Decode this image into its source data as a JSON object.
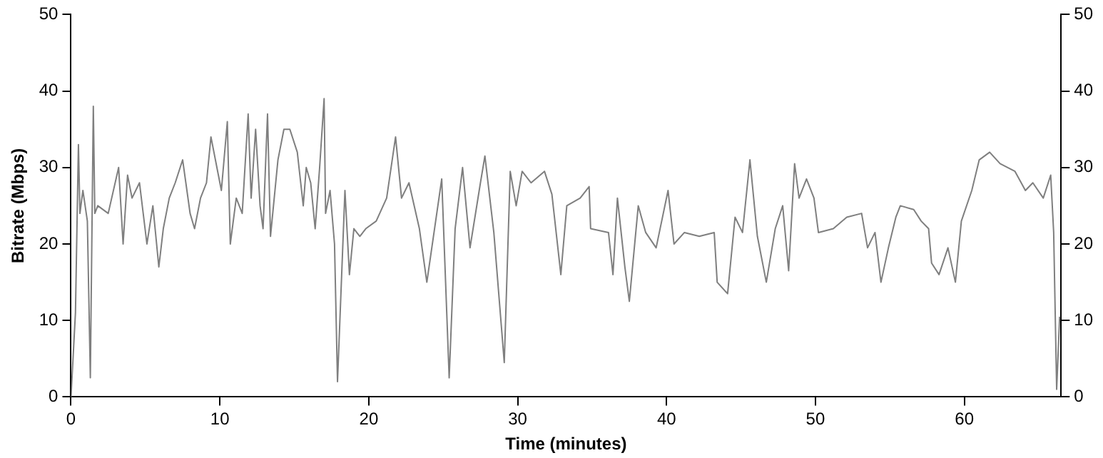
{
  "chart_data": {
    "type": "line",
    "xlabel": "Time (minutes)",
    "ylabel": "Bitrate (Mbps)",
    "xlim": [
      0,
      66.5
    ],
    "xticks": [
      0,
      10,
      20,
      30,
      40,
      50,
      60
    ],
    "ylim": [
      0,
      50
    ],
    "yticks": [
      0,
      10,
      20,
      30,
      40,
      50
    ],
    "y2lim": [
      0,
      50
    ],
    "y2ticks": [
      0,
      10,
      20,
      30,
      40,
      50
    ],
    "grid": false,
    "legend": false,
    "marker": "none",
    "line_style": "solid",
    "series": [
      {
        "color": "#7f7f7f",
        "x": [
          0,
          0.3,
          0.5,
          0.6,
          0.8,
          1.1,
          1.3,
          1.5,
          1.6,
          1.8,
          2.5,
          3.2,
          3.5,
          3.8,
          4.1,
          4.6,
          5.1,
          5.5,
          5.9,
          6.2,
          6.6,
          7.0,
          7.5,
          8.0,
          8.3,
          8.7,
          9.1,
          9.4,
          9.9,
          10.1,
          10.5,
          10.7,
          11.1,
          11.5,
          11.9,
          12.1,
          12.4,
          12.7,
          12.9,
          13.2,
          13.4,
          13.6,
          13.9,
          14.3,
          14.7,
          15.2,
          15.6,
          15.8,
          16.1,
          16.4,
          16.7,
          17.0,
          17.1,
          17.4,
          17.7,
          17.9,
          18.4,
          18.7,
          19.0,
          19.4,
          19.8,
          20.5,
          21.2,
          21.8,
          22.2,
          22.7,
          23.4,
          23.9,
          24.9,
          25.4,
          25.8,
          26.3,
          26.8,
          27.5,
          27.8,
          28.4,
          29.1,
          29.5,
          29.9,
          30.3,
          30.9,
          31.8,
          32.3,
          32.9,
          33.3,
          34.2,
          34.8,
          34.9,
          36.1,
          36.4,
          36.7,
          37.2,
          37.5,
          38.1,
          38.6,
          39.3,
          40.1,
          40.5,
          41.2,
          42.2,
          43.2,
          43.4,
          44.1,
          44.6,
          45.1,
          45.6,
          46.1,
          46.7,
          47.3,
          47.8,
          48.2,
          48.6,
          48.9,
          49.4,
          49.9,
          50.2,
          51.2,
          52.1,
          53.1,
          53.5,
          54.0,
          54.4,
          54.9,
          55.4,
          55.7,
          56.6,
          57.1,
          57.6,
          57.8,
          58.3,
          58.9,
          59.4,
          59.8,
          60.5,
          61.0,
          61.7,
          62.4,
          63.4,
          64.1,
          64.6,
          65.3,
          65.8,
          66.0,
          66.2,
          66.4
        ],
        "values": [
          0,
          11,
          33,
          24,
          27,
          23,
          2.5,
          38,
          24,
          25,
          24,
          30,
          20,
          29,
          26,
          28,
          20,
          25,
          17,
          22,
          26,
          28,
          31,
          24,
          22,
          26,
          28,
          34,
          29,
          27,
          36,
          20,
          26,
          24,
          37,
          26,
          35,
          25,
          22,
          37,
          21,
          25,
          31,
          35,
          35,
          32,
          25,
          30,
          28,
          22,
          30,
          39,
          24,
          27,
          20,
          2,
          27,
          16,
          22,
          21,
          22,
          23,
          26,
          34,
          26,
          28,
          22,
          15,
          28.5,
          2.5,
          22,
          30,
          19.5,
          28,
          31.5,
          21.5,
          4.5,
          29.5,
          25,
          29.5,
          28,
          29.5,
          26.5,
          16,
          25,
          26,
          27.5,
          22,
          21.5,
          16,
          26,
          17,
          12.5,
          25,
          21.5,
          19.5,
          27,
          20,
          21.5,
          21,
          21.5,
          15,
          13.5,
          23.5,
          21.5,
          31,
          21,
          15,
          22,
          25,
          16.5,
          30.5,
          26,
          28.5,
          26,
          21.5,
          22,
          23.5,
          24,
          19.5,
          21.5,
          15,
          19.5,
          23.5,
          25,
          24.5,
          23,
          22,
          17.5,
          16,
          19.5,
          15,
          23,
          27,
          31,
          32,
          30.5,
          29.5,
          27,
          28,
          26,
          29,
          21.5,
          1,
          10.5
        ]
      }
    ]
  }
}
